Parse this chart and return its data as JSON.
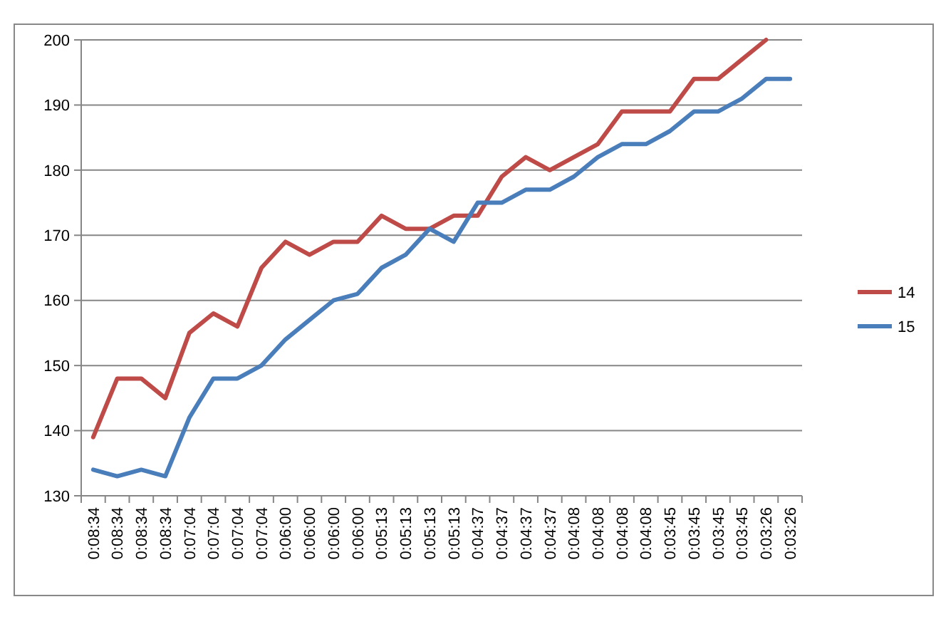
{
  "chart_data": {
    "type": "line",
    "categories": [
      "0:08:34",
      "0:08:34",
      "0:08:34",
      "0:08:34",
      "0:07:04",
      "0:07:04",
      "0:07:04",
      "0:07:04",
      "0:06:00",
      "0:06:00",
      "0:06:00",
      "0:06:00",
      "0:05:13",
      "0:05:13",
      "0:05:13",
      "0:05:13",
      "0:04:37",
      "0:04:37",
      "0:04:37",
      "0:04:37",
      "0:04:08",
      "0:04:08",
      "0:04:08",
      "0:04:08",
      "0:03:45",
      "0:03:45",
      "0:03:45",
      "0:03:45",
      "0:03:26",
      "0:03:26"
    ],
    "series": [
      {
        "name": "14",
        "color": "#be4b48",
        "values": [
          139,
          148,
          148,
          145,
          155,
          158,
          156,
          165,
          169,
          167,
          169,
          169,
          173,
          171,
          171,
          173,
          173,
          179,
          182,
          180,
          182,
          184,
          189,
          189,
          189,
          194,
          194,
          197,
          200,
          null
        ]
      },
      {
        "name": "15",
        "color": "#4a7ebb",
        "values": [
          134,
          133,
          134,
          133,
          142,
          148,
          148,
          150,
          154,
          157,
          160,
          161,
          165,
          167,
          171,
          169,
          175,
          175,
          177,
          177,
          179,
          182,
          184,
          184,
          186,
          189,
          189,
          191,
          194,
          194
        ]
      }
    ],
    "ylim": [
      130,
      200
    ],
    "yticks": [
      130,
      140,
      150,
      160,
      170,
      180,
      190,
      200
    ],
    "grid": "y",
    "legend": "right",
    "marker": "none",
    "line_style": "solid"
  }
}
